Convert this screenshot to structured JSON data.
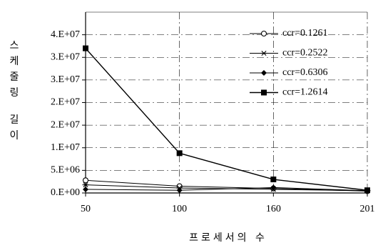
{
  "chart_data": {
    "type": "line",
    "x": [
      50,
      100,
      160,
      201
    ],
    "xlabel": "프로세서의 수",
    "ylabel": "스케줄링 길이",
    "ylim": [
      0,
      40000000
    ],
    "y_tick_labels": [
      "0.E+00",
      "5.E+06",
      "1.E+07",
      "2.E+07",
      "2.E+07",
      "3.E+07",
      "3.E+07",
      "4.E+07"
    ],
    "y_tick_values": [
      0,
      5000000,
      10000000,
      15000000,
      20000000,
      25000000,
      30000000,
      35000000
    ],
    "legend_position": "top-right",
    "grid": true,
    "series": [
      {
        "name": "ccr=0.1261",
        "marker": "circle-open",
        "values": [
          2800000,
          1500000,
          1000000,
          400000
        ]
      },
      {
        "name": "ccr=0.2522",
        "marker": "asterisk",
        "values": [
          1800000,
          1100000,
          800000,
          500000
        ]
      },
      {
        "name": "ccr=0.6306",
        "marker": "diamond-filled",
        "values": [
          800000,
          600000,
          1200000,
          500000
        ]
      },
      {
        "name": "ccr=1.2614",
        "marker": "square-filled",
        "values": [
          32000000,
          8800000,
          3000000,
          600000
        ]
      }
    ]
  }
}
